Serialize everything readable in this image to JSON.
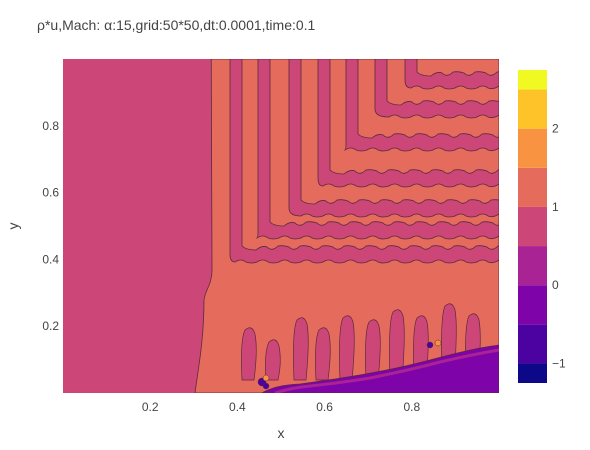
{
  "chart_data": {
    "type": "contour",
    "title": "ρ*u,Mach: α:15,grid:50*50,dt:0.0001,time:0.1",
    "xlabel": "x",
    "ylabel": "y",
    "xlim": [
      0.0,
      1.0
    ],
    "ylim": [
      0.0,
      1.0
    ],
    "x_ticks": [
      {
        "value": 0.2,
        "label": "0.2"
      },
      {
        "value": 0.4,
        "label": "0.4"
      },
      {
        "value": 0.6,
        "label": "0.6"
      },
      {
        "value": 0.8,
        "label": "0.8"
      }
    ],
    "y_ticks": [
      {
        "value": 0.2,
        "label": "0.2"
      },
      {
        "value": 0.4,
        "label": "0.4"
      },
      {
        "value": 0.6,
        "label": "0.6"
      },
      {
        "value": 0.8,
        "label": "0.8"
      }
    ],
    "colorbar": {
      "range": [
        -1.25,
        2.75
      ],
      "ticks": [
        {
          "value": 2,
          "label": "2"
        },
        {
          "value": 1,
          "label": "1"
        },
        {
          "value": 0,
          "label": "0"
        },
        {
          "value": -1,
          "label": "−1"
        }
      ],
      "levels": [
        {
          "from": -1.25,
          "to": -1.0,
          "color": "#0d0887"
        },
        {
          "from": -1.0,
          "to": -0.5,
          "color": "#4c02a1"
        },
        {
          "from": -0.5,
          "to": 0.0,
          "color": "#7e03a8"
        },
        {
          "from": 0.0,
          "to": 0.5,
          "color": "#a92395"
        },
        {
          "from": 0.5,
          "to": 1.0,
          "color": "#cc4778"
        },
        {
          "from": 1.0,
          "to": 1.5,
          "color": "#e56b5d"
        },
        {
          "from": 1.5,
          "to": 2.0,
          "color": "#f89441"
        },
        {
          "from": 2.0,
          "to": 2.5,
          "color": "#fdc328"
        },
        {
          "from": 2.5,
          "to": 2.75,
          "color": "#f0f921"
        }
      ]
    },
    "regions": {
      "background_level_color": "#cc4778",
      "shock_region_color": "#e56b5d",
      "low_region_color": "#7e03a8",
      "dark_spot_color": "#4c02a1",
      "shock_front_x": 0.34,
      "stripe_corner_y": [
        0.95,
        0.82,
        0.71,
        0.62,
        0.53,
        0.45
      ]
    }
  }
}
